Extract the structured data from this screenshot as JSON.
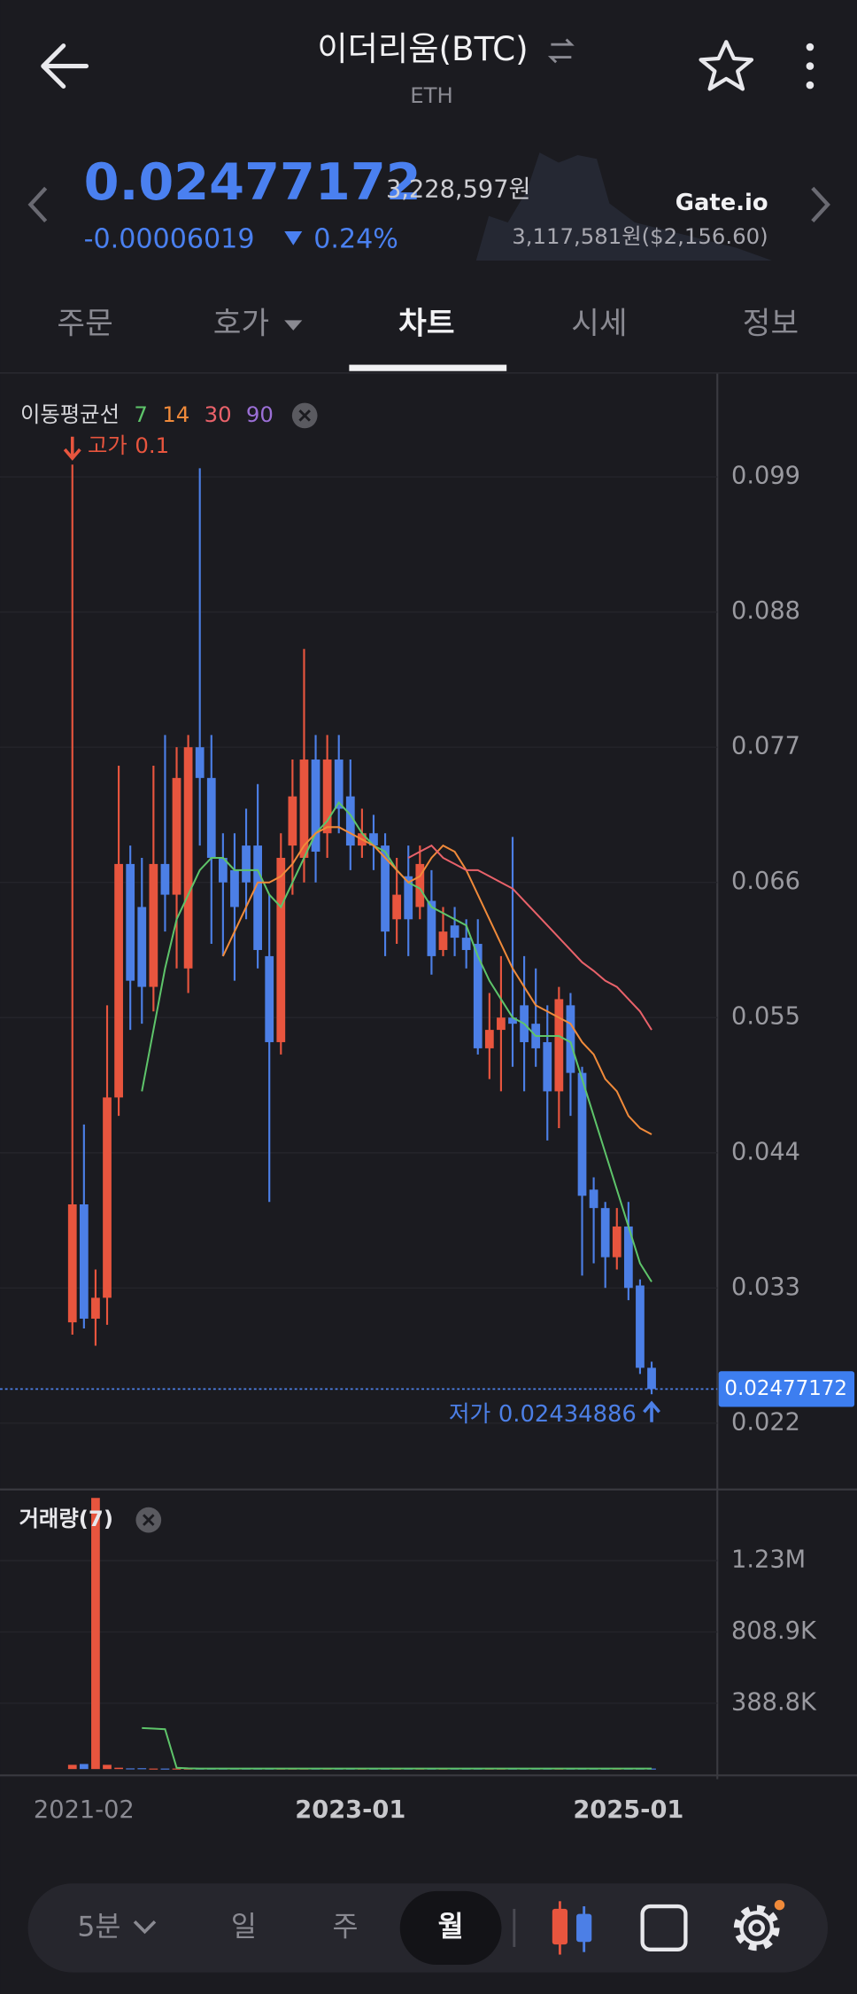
{
  "header": {
    "title": "이더리움(BTC)",
    "subtitle": "ETH",
    "price": "0.02477172",
    "price_krw": "3,228,597원",
    "change": "-0.00006019",
    "change_pct": "0.24%",
    "exchange": "Gate.io",
    "exchange_price": "3,117,581원($2,156.60)"
  },
  "tabs": [
    "주문",
    "호가",
    "차트",
    "시세",
    "정보"
  ],
  "toolbar": {
    "intervals": [
      "5분",
      "일",
      "주",
      "월"
    ]
  },
  "chart_data": [
    {
      "type": "candlestick",
      "legend_title": "이동평균선",
      "high_label": "고가",
      "low_label": "저가",
      "up_color": "#e8553e",
      "down_color": "#4c7fe6",
      "categories": [
        null,
        "2021-02",
        null,
        null,
        null,
        null,
        null,
        null,
        null,
        null,
        null,
        null,
        null,
        null,
        null,
        null,
        null,
        null,
        null,
        null,
        null,
        null,
        null,
        null,
        "2023-01",
        null,
        null,
        null,
        null,
        null,
        null,
        null,
        null,
        null,
        null,
        null,
        null,
        null,
        null,
        null,
        null,
        null,
        null,
        null,
        null,
        null,
        null,
        null,
        "2025-01",
        null,
        null
      ],
      "open": [
        0.0302,
        0.0398,
        0.0305,
        0.0322,
        0.0485,
        0.0675,
        0.064,
        0.0575,
        0.0675,
        0.065,
        0.059,
        0.077,
        0.0745,
        0.068,
        0.067,
        0.069,
        0.069,
        0.06,
        0.053,
        0.069,
        0.068,
        0.076,
        0.07,
        0.076,
        0.073,
        0.069,
        0.07,
        0.069,
        0.063,
        0.0665,
        0.064,
        0.0645,
        0.0605,
        0.0625,
        0.0615,
        0.061,
        0.0525,
        0.054,
        0.055,
        0.056,
        0.0545,
        0.053,
        0.049,
        0.056,
        0.0505,
        0.041,
        0.0395,
        0.0355,
        0.038,
        0.0332,
        0.0265
      ],
      "high": [
        0.1,
        0.0463,
        0.0345,
        0.056,
        0.0755,
        0.069,
        0.068,
        0.0755,
        0.078,
        0.077,
        0.078,
        0.0997,
        0.078,
        0.07,
        0.07,
        0.072,
        0.074,
        0.065,
        0.07,
        0.076,
        0.085,
        0.078,
        0.078,
        0.078,
        0.076,
        0.072,
        0.0715,
        0.07,
        0.068,
        0.069,
        0.069,
        0.067,
        0.064,
        0.064,
        0.063,
        0.063,
        0.057,
        0.06,
        0.0697,
        0.06,
        0.059,
        0.056,
        0.0575,
        0.057,
        0.051,
        0.042,
        0.04,
        0.0395,
        0.04,
        0.0337,
        0.027
      ],
      "low": [
        0.0292,
        0.0297,
        0.0283,
        0.03,
        0.047,
        0.054,
        0.0545,
        0.0555,
        0.062,
        0.059,
        0.057,
        0.069,
        0.061,
        0.06,
        0.058,
        0.063,
        0.059,
        0.04,
        0.052,
        0.065,
        0.066,
        0.066,
        0.068,
        0.07,
        0.067,
        0.068,
        0.067,
        0.06,
        0.061,
        0.06,
        0.063,
        0.0585,
        0.06,
        0.06,
        0.059,
        0.052,
        0.05,
        0.049,
        0.051,
        0.049,
        0.051,
        0.045,
        0.046,
        0.047,
        0.034,
        0.035,
        0.033,
        0.0345,
        0.032,
        0.026,
        0.02434886
      ],
      "close": [
        0.0398,
        0.0305,
        0.0322,
        0.0485,
        0.0675,
        0.058,
        0.0575,
        0.0675,
        0.065,
        0.0745,
        0.077,
        0.0745,
        0.068,
        0.066,
        0.064,
        0.066,
        0.0605,
        0.053,
        0.068,
        0.073,
        0.076,
        0.0685,
        0.076,
        0.072,
        0.069,
        0.07,
        0.069,
        0.062,
        0.065,
        0.063,
        0.0675,
        0.06,
        0.062,
        0.0615,
        0.0605,
        0.0525,
        0.054,
        0.055,
        0.0545,
        0.053,
        0.0525,
        0.049,
        0.0565,
        0.0505,
        0.0405,
        0.0395,
        0.0355,
        0.038,
        0.033,
        0.0265,
        0.02477172
      ],
      "series": [
        {
          "name": "7",
          "color": "#5ec46a",
          "values": [
            null,
            null,
            null,
            null,
            null,
            null,
            0.049,
            0.054,
            0.059,
            0.063,
            0.065,
            0.067,
            0.068,
            0.068,
            0.067,
            0.067,
            0.067,
            0.065,
            0.064,
            0.066,
            0.068,
            0.07,
            0.071,
            0.0725,
            0.0715,
            0.07,
            0.069,
            0.0685,
            0.067,
            0.066,
            0.0655,
            0.064,
            0.0635,
            0.063,
            0.0625,
            0.06,
            0.058,
            0.0565,
            0.055,
            0.0545,
            0.0535,
            0.0535,
            0.0535,
            0.053,
            0.05,
            0.047,
            0.044,
            0.041,
            0.038,
            0.035,
            0.0335
          ]
        },
        {
          "name": "14",
          "color": "#f08a3a",
          "values": [
            null,
            null,
            null,
            null,
            null,
            null,
            null,
            null,
            null,
            null,
            null,
            null,
            null,
            0.06,
            0.062,
            0.064,
            0.066,
            0.066,
            0.0665,
            0.0675,
            0.069,
            0.07,
            0.0705,
            0.0705,
            0.07,
            0.0695,
            0.069,
            0.068,
            0.067,
            0.066,
            0.0665,
            0.068,
            0.069,
            0.0685,
            0.067,
            0.065,
            0.063,
            0.061,
            0.059,
            0.0575,
            0.056,
            0.0555,
            0.055,
            0.0545,
            0.053,
            0.052,
            0.05,
            0.049,
            0.047,
            0.046,
            0.0455
          ]
        },
        {
          "name": "30",
          "color": "#e9626a",
          "values": [
            null,
            null,
            null,
            null,
            null,
            null,
            null,
            null,
            null,
            null,
            null,
            null,
            null,
            null,
            null,
            null,
            null,
            null,
            null,
            null,
            null,
            null,
            null,
            null,
            null,
            null,
            null,
            null,
            null,
            0.068,
            0.0685,
            0.069,
            0.068,
            0.0675,
            0.067,
            0.067,
            0.0665,
            0.066,
            0.0655,
            0.0645,
            0.0635,
            0.0625,
            0.0615,
            0.0605,
            0.0595,
            0.0588,
            0.058,
            0.0575,
            0.0565,
            0.0555,
            0.054
          ]
        },
        {
          "name": "90",
          "color": "#9b6fd6"
        }
      ],
      "ylim": [
        0.0166,
        0.1073
      ],
      "yticks": [
        0.022,
        0.033,
        0.044,
        0.055,
        0.066,
        0.077,
        0.088,
        0.099
      ],
      "grid": true
    },
    {
      "type": "bar",
      "title": "거래량(7)",
      "ma_color": "#5ec46a",
      "values": [
        25000,
        30000,
        1600000,
        25000,
        8000,
        4000,
        5000,
        3000,
        3000,
        3000,
        3000,
        3000,
        3000,
        3000,
        3000,
        3000,
        3000,
        3000,
        3000,
        3000,
        3000,
        3000,
        3000,
        3000,
        3000,
        3000,
        3000,
        3000,
        3000,
        3000,
        3000,
        3000,
        3000,
        3000,
        3000,
        3000,
        3000,
        3000,
        3000,
        3000,
        3000,
        3000,
        3000,
        3000,
        3000,
        3000,
        3000,
        3000,
        3000,
        3000,
        3000
      ],
      "ma_values": [
        null,
        null,
        null,
        null,
        null,
        null,
        242000,
        239000,
        235000,
        7300,
        4000,
        3000,
        3000,
        3000,
        3000,
        3000,
        3000,
        3000,
        3000,
        3000,
        3000,
        3000,
        3000,
        3000,
        3000,
        3000,
        3000,
        3000,
        3000,
        3000,
        3000,
        3000,
        3000,
        3000,
        3000,
        3000,
        3000,
        3000,
        3000,
        3000,
        3000,
        3000,
        3000,
        3000,
        3000,
        3000,
        3000,
        3000,
        3000,
        3000,
        3000
      ],
      "ylim": [
        0,
        1650000
      ],
      "yticks": [
        {
          "value": 388800,
          "label": "388.8K"
        },
        {
          "value": 808900,
          "label": "808.9K"
        },
        {
          "value": 1230000,
          "label": "1.23M"
        }
      ]
    }
  ]
}
